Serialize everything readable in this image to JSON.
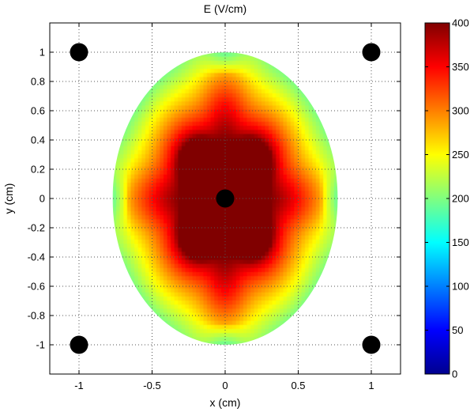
{
  "chart_data": {
    "type": "heatmap",
    "title": "E (V/cm)",
    "xlabel": "x (cm)",
    "ylabel": "y (cm)",
    "xlim": [
      -1.2,
      1.2
    ],
    "ylim": [
      -1.2,
      1.2
    ],
    "grid": true,
    "x_ticks": [
      -1,
      -0.5,
      0,
      0.5,
      1
    ],
    "x_tick_labels": [
      "-1",
      "-0.5",
      "0",
      "0.5",
      "1"
    ],
    "y_ticks": [
      1,
      0.8,
      0.6,
      0.4,
      0.2,
      0,
      -0.2,
      -0.4,
      -0.6,
      -0.8,
      -1
    ],
    "y_tick_labels": [
      "1",
      "0.8",
      "0.6",
      "0.4",
      "0.2",
      "0",
      "-0.2",
      "-0.4",
      "-0.6",
      "-0.8",
      "-1"
    ],
    "field_region": {
      "shape": "ellipse",
      "center": [
        0,
        0
      ],
      "semi_axis_x": 0.77,
      "semi_axis_y": 1.0
    },
    "electrodes": [
      {
        "name": "center",
        "x": 0,
        "y": 0
      },
      {
        "name": "top-left",
        "x": -1,
        "y": 1
      },
      {
        "name": "top-right",
        "x": 1,
        "y": 1
      },
      {
        "name": "bottom-left",
        "x": -1,
        "y": -1
      },
      {
        "name": "bottom-right",
        "x": 1,
        "y": -1
      }
    ],
    "colorbar": {
      "range": [
        0,
        400
      ],
      "ticks": [
        0,
        50,
        100,
        150,
        200,
        250,
        300,
        350,
        400
      ],
      "tick_labels": [
        "0",
        "50",
        "100",
        "150",
        "200",
        "250",
        "300",
        "350",
        "400"
      ],
      "colormap": "jet"
    },
    "field_levels": {
      "near_center": 400,
      "cross_arms": 310,
      "diagonal_low": 200,
      "boundary_axis_low": 190
    }
  }
}
